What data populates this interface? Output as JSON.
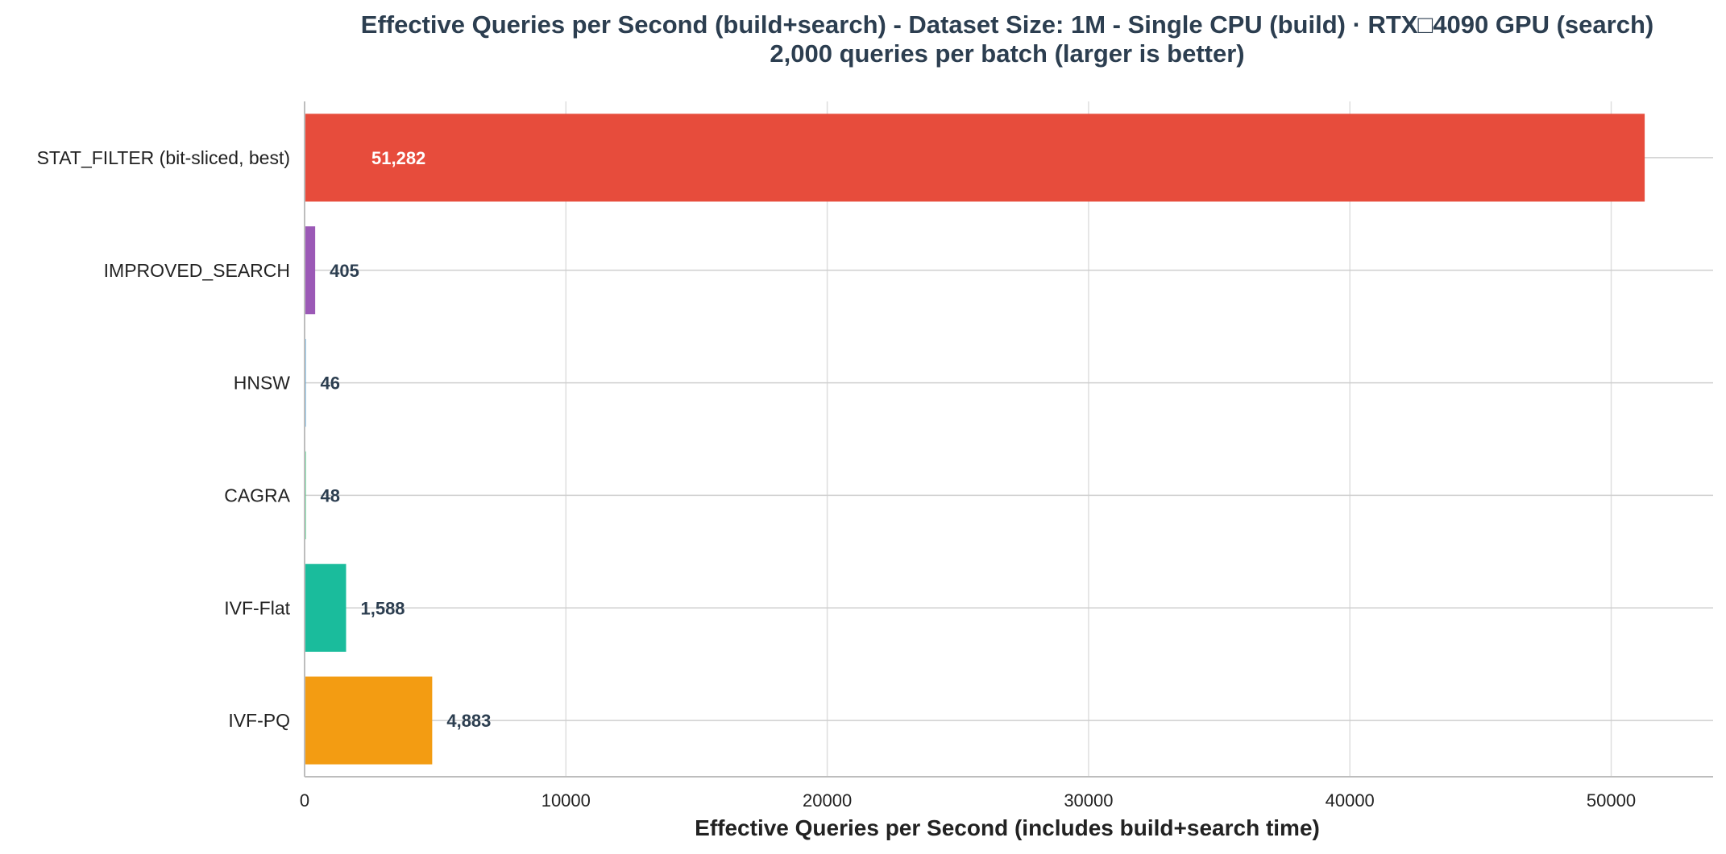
{
  "chart_data": {
    "type": "bar",
    "orientation": "horizontal",
    "title_line1": "Effective Queries per Second (build+search) - Dataset Size: 1M - Single CPU (build) · RTX□4090 GPU (search)",
    "title_line2": "2,000 queries per batch (larger is better)",
    "xlabel": "Effective Queries per Second (includes build+search time)",
    "ylabel": "",
    "xlim": [
      0,
      53900
    ],
    "xticks": [
      0,
      10000,
      20000,
      30000,
      40000,
      50000
    ],
    "xtick_labels": [
      "0",
      "10000",
      "20000",
      "30000",
      "40000",
      "50000"
    ],
    "grid": "x-major",
    "categories": [
      "STAT_FILTER (bit-sliced, best)",
      "IMPROVED_SEARCH",
      "HNSW",
      "CAGRA",
      "IVF-Flat",
      "IVF-PQ"
    ],
    "values": [
      51282,
      405,
      46,
      48,
      1588,
      4883
    ],
    "value_labels": [
      "51,282",
      "405",
      "46",
      "48",
      "1,588",
      "4,883"
    ],
    "colors": [
      "#e74c3c",
      "#9b59b6",
      "#3498db",
      "#2ecc71",
      "#1abc9c",
      "#f39c12"
    ],
    "label_inside_bar": [
      true,
      false,
      false,
      false,
      false,
      false
    ],
    "label_color_inside": "#ffffff",
    "label_color_outside": "#2c3e50"
  }
}
